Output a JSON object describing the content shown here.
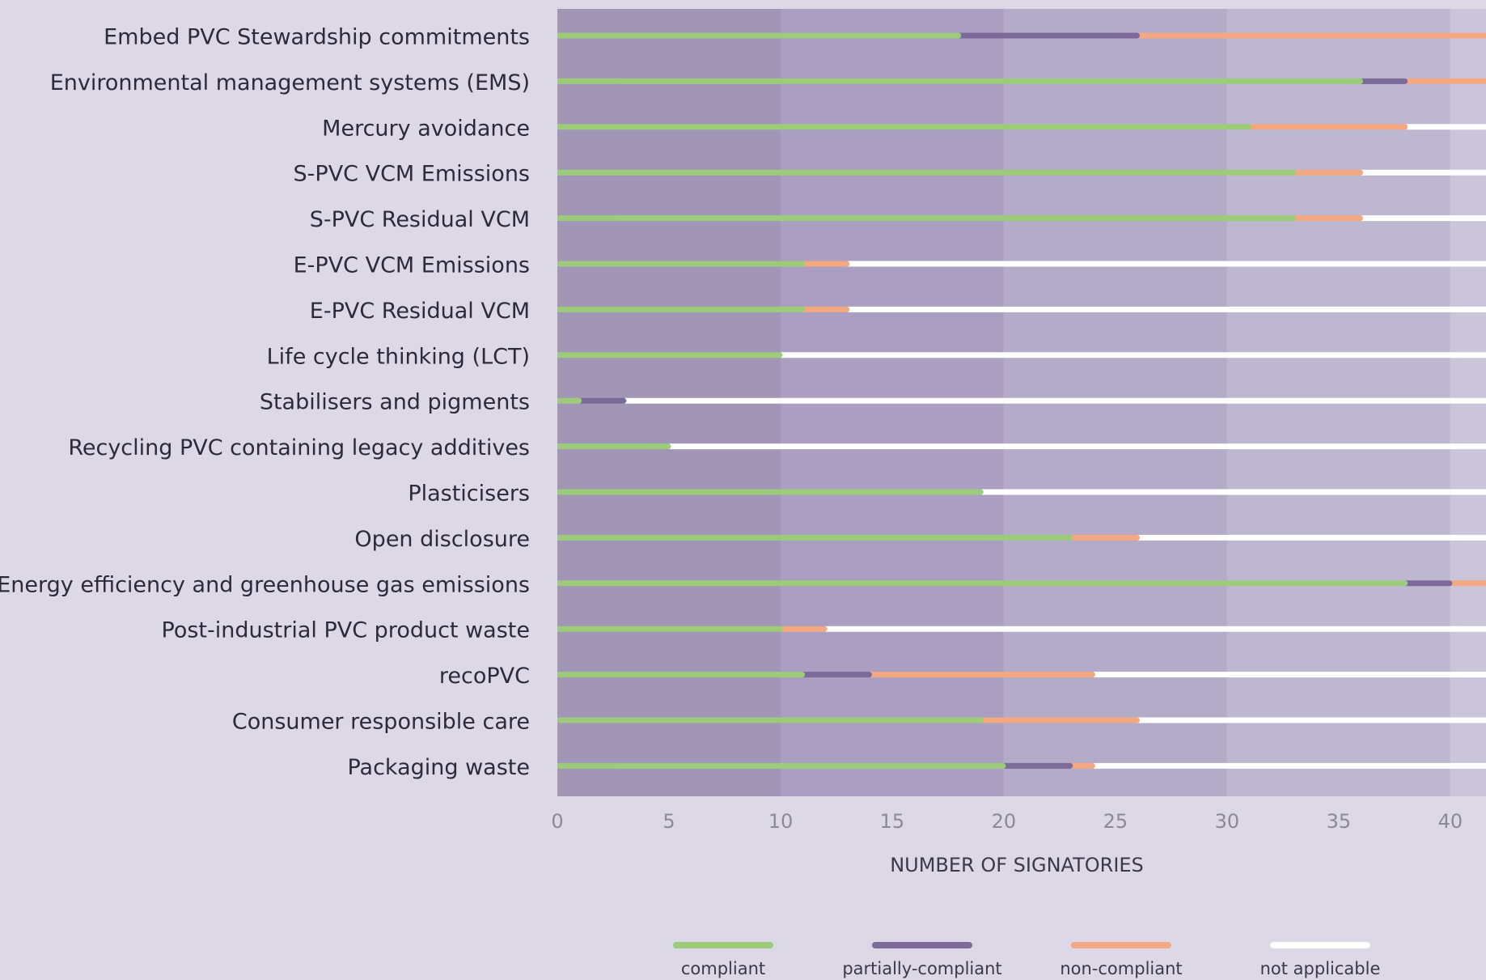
{
  "chart_data": {
    "type": "stacked-bar-horizontal",
    "x_label": "NUMBER OF SIGNATORIES",
    "categories": [
      "Embed PVC Stewardship commitments",
      "Environmental management systems (EMS)",
      "Mercury avoidance",
      "S-PVC VCM Emissions",
      "S-PVC Residual VCM",
      "E-PVC VCM Emissions",
      "E-PVC Residual VCM",
      "Life cycle thinking (LCT)",
      "Stabilisers and pigments",
      "Recycling PVC containing legacy additives",
      "Plasticisers",
      "Open disclosure",
      "Energy efficiency and greenhouse gas emissions",
      "Post-industrial PVC product waste",
      "recoPVC",
      "Consumer responsible care",
      "Packaging waste"
    ],
    "series": [
      {
        "name": "compliant",
        "color": "#9ccc7a",
        "values": [
          18,
          36,
          31,
          33,
          33,
          11,
          11,
          10,
          1,
          5,
          19,
          23,
          38,
          10,
          11,
          19,
          20
        ]
      },
      {
        "name": "partially-compliant",
        "color": "#7b6a9a",
        "values": [
          8,
          2,
          0,
          0,
          0,
          0,
          0,
          0,
          2,
          0,
          0,
          0,
          2,
          0,
          3,
          0,
          3
        ]
      },
      {
        "name": "non-compliant",
        "color": "#f4a882",
        "values": [
          16,
          4,
          7,
          3,
          3,
          2,
          2,
          0,
          0,
          0,
          0,
          3,
          2,
          2,
          10,
          7,
          1
        ]
      },
      {
        "name": "not applicable",
        "color": "#ffffff",
        "values": [
          0,
          0,
          4,
          6,
          6,
          29,
          29,
          32,
          39,
          37,
          23,
          16,
          0,
          30,
          18,
          16,
          18
        ]
      }
    ],
    "xlim": [
      0,
      41.6
    ],
    "xticks": [
      0,
      5,
      10,
      15,
      20,
      25,
      30,
      35,
      40
    ]
  }
}
